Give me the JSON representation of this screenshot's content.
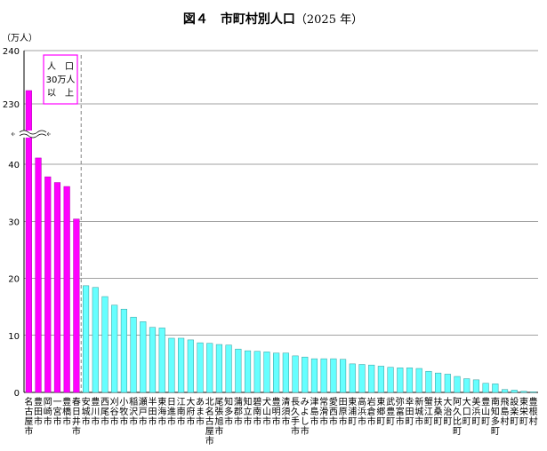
{
  "title": {
    "main": "図４　市町村別人口",
    "year": "（2025 年）"
  },
  "unit_label": "（万人）",
  "annotation": {
    "line1": "人　口",
    "line2": "30万人",
    "line3": "以　上"
  },
  "colors": {
    "major": "#ff00ff",
    "other": "#66ffff",
    "bar_outline": "#333333",
    "divider": "#808080"
  },
  "chart_data": {
    "type": "bar",
    "title": "図４　市町村別人口（2025 年）",
    "ylabel": "（万人）",
    "axis_break": {
      "lower_max": 45,
      "upper_min": 225,
      "upper_max": 240
    },
    "yticks_lower": [
      0,
      10,
      20,
      30,
      40
    ],
    "yticks_upper": [
      230,
      240
    ],
    "categories": [
      "名古屋市",
      "豊田市",
      "岡崎市",
      "一宮市",
      "豊橋市",
      "春日井市",
      "安城市",
      "豊川市",
      "西尾市",
      "刈谷市",
      "小牧市",
      "稲沢市",
      "瀬戸市",
      "半田市",
      "東海市",
      "日進市",
      "江南市",
      "大府市",
      "あま市",
      "北名古屋市",
      "尾張旭市",
      "知多市",
      "蒲郡市",
      "知立市",
      "碧南市",
      "犬山市",
      "豊明市",
      "清須市",
      "長久手市",
      "みよし市",
      "津島市",
      "常滑市",
      "愛西市",
      "田原市",
      "東浦町",
      "高浜市",
      "岩倉市",
      "東郷町",
      "武豊町",
      "弥富市",
      "幸田町",
      "新城市",
      "蟹江町",
      "扶桑町",
      "大治町",
      "阿久比町",
      "大口町",
      "美浜町",
      "豊山町",
      "南知多町",
      "飛島村",
      "設楽町",
      "東栄町",
      "豊根村"
    ],
    "values": [
      232.5,
      41.1,
      37.8,
      36.8,
      36.1,
      30.4,
      18.7,
      18.4,
      16.8,
      15.3,
      14.6,
      13.2,
      12.4,
      11.4,
      11.3,
      9.5,
      9.5,
      9.2,
      8.7,
      8.6,
      8.4,
      8.3,
      7.6,
      7.3,
      7.2,
      7.1,
      6.9,
      6.9,
      6.4,
      6.2,
      5.9,
      5.9,
      5.9,
      5.8,
      5.0,
      4.9,
      4.8,
      4.6,
      4.4,
      4.3,
      4.3,
      4.2,
      3.7,
      3.4,
      3.2,
      2.8,
      2.4,
      2.2,
      1.6,
      1.5,
      0.5,
      0.4,
      0.2,
      0.1
    ],
    "highlight_count": 6,
    "grid": true,
    "legend": "none"
  }
}
